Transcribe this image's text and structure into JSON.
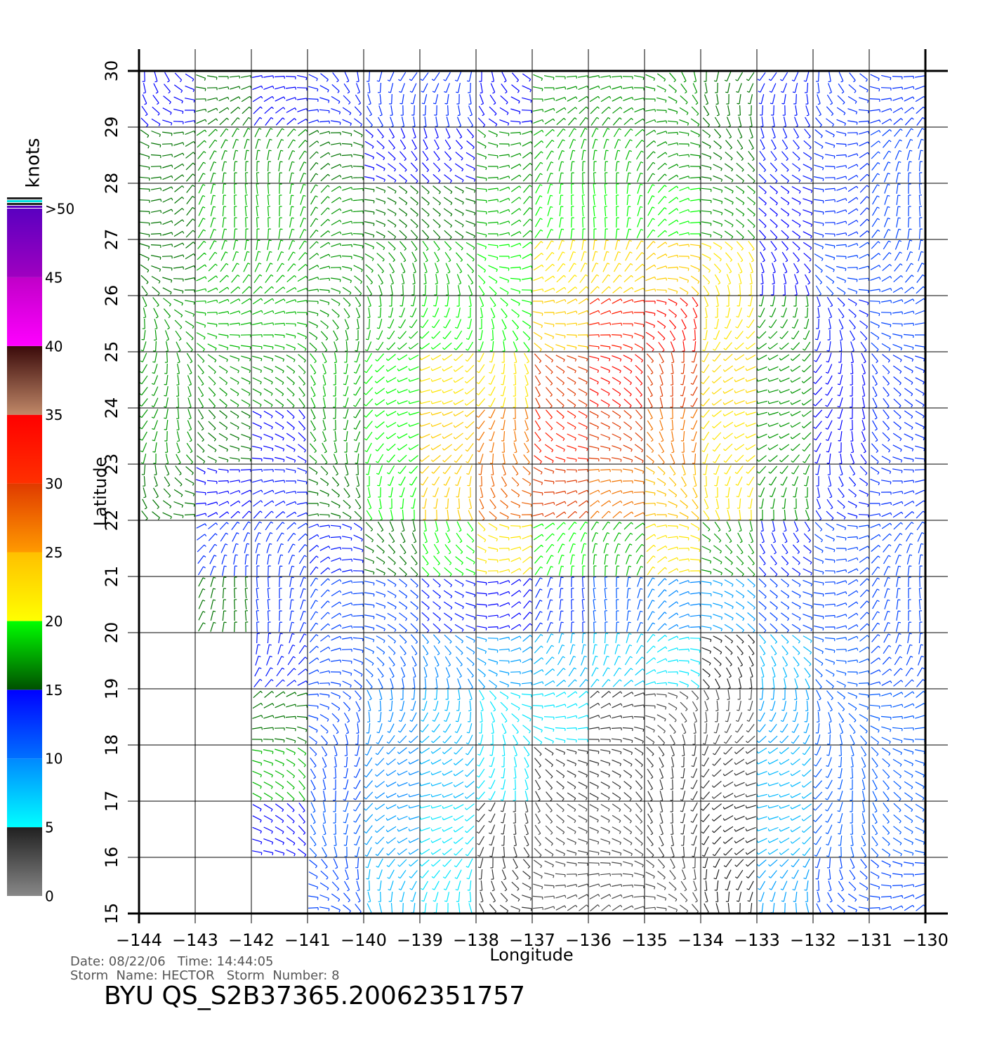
{
  "chart_data": {
    "type": "wind-field",
    "xlabel": "Longitude",
    "ylabel": "Latitude",
    "xlim": [
      -144,
      -130
    ],
    "ylim": [
      15,
      30
    ],
    "xticks": [
      {
        "value": -144,
        "label": "−144"
      },
      {
        "value": -143,
        "label": "−143"
      },
      {
        "value": -142,
        "label": "−142"
      },
      {
        "value": -141,
        "label": "−141"
      },
      {
        "value": -140,
        "label": "−140"
      },
      {
        "value": -139,
        "label": "−139"
      },
      {
        "value": -138,
        "label": "−138"
      },
      {
        "value": -137,
        "label": "−137"
      },
      {
        "value": -136,
        "label": "−136"
      },
      {
        "value": -135,
        "label": "−135"
      },
      {
        "value": -134,
        "label": "−134"
      },
      {
        "value": -133,
        "label": "−133"
      },
      {
        "value": -132,
        "label": "−132"
      },
      {
        "value": -131,
        "label": "−131"
      },
      {
        "value": -130,
        "label": "−130"
      }
    ],
    "yticks": [
      15,
      16,
      17,
      18,
      19,
      20,
      21,
      22,
      23,
      24,
      25,
      26,
      27,
      28,
      29,
      30
    ],
    "grid": true,
    "values": [
      [
        15,
        16,
        15,
        14,
        13,
        13,
        15,
        17,
        17,
        17,
        16,
        14,
        13,
        13
      ],
      [
        16,
        17,
        17,
        16,
        15,
        15,
        17,
        18,
        18,
        17,
        16,
        14,
        13,
        12
      ],
      [
        16,
        18,
        18,
        17,
        16,
        16,
        18,
        20,
        20,
        20,
        17,
        15,
        13,
        12
      ],
      [
        16,
        18,
        18,
        17,
        17,
        18,
        20,
        22,
        23,
        24,
        22,
        15,
        12,
        12
      ],
      [
        17,
        18,
        18,
        17,
        18,
        20,
        20,
        24,
        32,
        34,
        22,
        17,
        14,
        12
      ],
      [
        17,
        17,
        17,
        18,
        20,
        22,
        22,
        30,
        34,
        30,
        23,
        17,
        15,
        13
      ],
      [
        17,
        16,
        15,
        17,
        20,
        24,
        27,
        32,
        30,
        27,
        22,
        17,
        15,
        13
      ],
      [
        16,
        15,
        14,
        16,
        20,
        24,
        28,
        30,
        27,
        25,
        22,
        17,
        14,
        13
      ],
      [
        null,
        13,
        13,
        14,
        16,
        20,
        22,
        20,
        18,
        22,
        17,
        14,
        12,
        12
      ],
      [
        null,
        16,
        13,
        12,
        12,
        14,
        15,
        13,
        11,
        10,
        9,
        12,
        12,
        12
      ],
      [
        null,
        null,
        14,
        12,
        11,
        10,
        9,
        8,
        7,
        6,
        5,
        8,
        11,
        12
      ],
      [
        null,
        null,
        16,
        12,
        10,
        8,
        6,
        6,
        4,
        3,
        3,
        9,
        11,
        11
      ],
      [
        null,
        null,
        18,
        12,
        10,
        8,
        6,
        4,
        4,
        4,
        4,
        8,
        11,
        11
      ],
      [
        null,
        null,
        15,
        11,
        9,
        6,
        4,
        3,
        3,
        4,
        5,
        8,
        11,
        11
      ],
      [
        null,
        null,
        null,
        12,
        8,
        6,
        4,
        3,
        3,
        3,
        5,
        9,
        12,
        12
      ]
    ],
    "colorbar": {
      "label": "knots",
      "ticks": [
        0,
        5,
        10,
        15,
        20,
        25,
        30,
        35,
        40,
        45,
        {
          "value": 50,
          "label": ">50"
        }
      ],
      "colors": [
        [
          "#888888",
          "#202020"
        ],
        [
          "#00ffff",
          "#0088ff"
        ],
        [
          "#0070ff",
          "#0000ff"
        ],
        [
          "#005000",
          "#00ff00"
        ],
        [
          "#ffff00",
          "#ffc000"
        ],
        [
          "#ff9a00",
          "#e03a00"
        ],
        [
          "#ff3000",
          "#ff0000"
        ],
        [
          "#c08868",
          "#3a0a0a"
        ],
        [
          "#ff00ff",
          "#c000c8"
        ],
        [
          "#a000c0",
          "#5a00c0"
        ]
      ]
    },
    "footer": [
      "Date: 08/22/06   Time: 14:44:05",
      "Storm  Name: HECTOR   Storm  Number: 8"
    ],
    "title": "BYU  QS_S2B37365.20062351757"
  }
}
